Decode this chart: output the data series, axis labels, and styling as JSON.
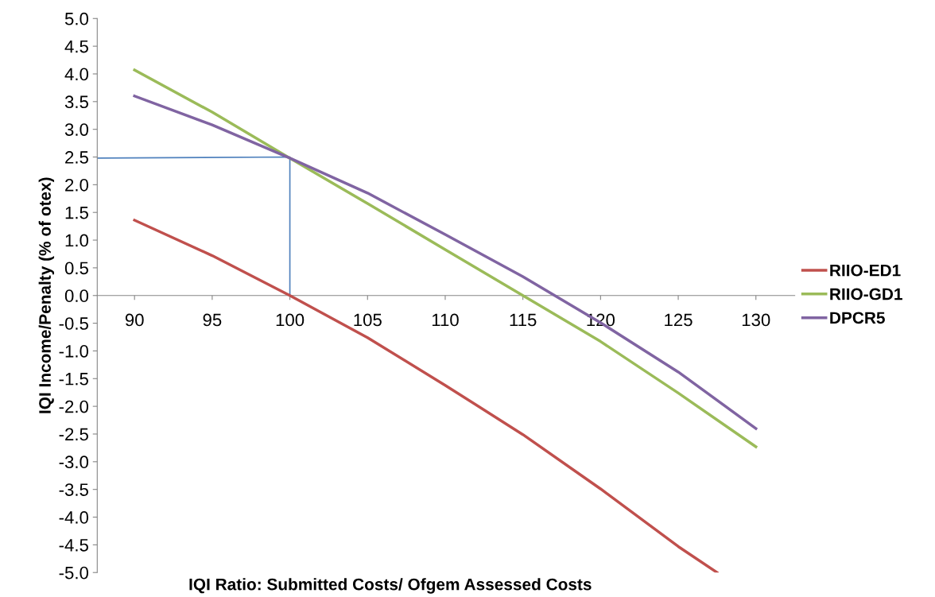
{
  "chart_data": {
    "type": "line",
    "xlabel": "IQI Ratio: Submitted Costs/ Ofgem Assessed Costs",
    "ylabel": "IQI Income/Penalty (% of otex)",
    "xlim": [
      87.6,
      132.5
    ],
    "xticks": [
      90,
      95,
      100,
      105,
      110,
      115,
      120,
      125,
      130
    ],
    "ylim": [
      -5.0,
      5.0
    ],
    "yticks": [
      {
        "value": 5,
        "label": "5.0"
      },
      {
        "value": 4.5,
        "label": "4.5"
      },
      {
        "value": 4,
        "label": "4.0"
      },
      {
        "value": 3.5,
        "label": "3.5"
      },
      {
        "value": 3,
        "label": "3.0"
      },
      {
        "value": 2.5,
        "label": "2.5"
      },
      {
        "value": 2,
        "label": "2.0"
      },
      {
        "value": 1.5,
        "label": "1.5"
      },
      {
        "value": 1,
        "label": "1.0"
      },
      {
        "value": 0.5,
        "label": "0.5"
      },
      {
        "value": 0,
        "label": "0.0"
      },
      {
        "value": -0.5,
        "label": "-0.5"
      },
      {
        "value": -1,
        "label": "-1.0"
      },
      {
        "value": -1.5,
        "label": "-1.5"
      },
      {
        "value": -2,
        "label": "-2.0"
      },
      {
        "value": -2.5,
        "label": "-2.5"
      },
      {
        "value": -3,
        "label": "-3.0"
      },
      {
        "value": -3.5,
        "label": "-3.5"
      },
      {
        "value": -4,
        "label": "-4.0"
      },
      {
        "value": -4.5,
        "label": "-4.5"
      },
      {
        "value": -5,
        "label": "-5.0"
      }
    ],
    "grid": false,
    "legend": "right",
    "marker": "none",
    "line_style": "solid",
    "series": [
      {
        "name": "RIIO-ED1",
        "color": "#c0504d",
        "x": [
          90,
          95,
          100,
          105,
          110,
          115,
          120,
          125,
          127.5
        ],
        "values": [
          1.36,
          0.72,
          0.0,
          -0.76,
          -1.62,
          -2.51,
          -3.49,
          -4.53,
          -5.0
        ]
      },
      {
        "name": "RIIO-GD1",
        "color": "#9bbb59",
        "x": [
          90,
          95,
          100,
          105,
          110,
          115,
          120,
          125,
          130
        ],
        "values": [
          4.07,
          3.31,
          2.48,
          1.66,
          0.83,
          0.0,
          -0.83,
          -1.76,
          -2.73
        ]
      },
      {
        "name": "DPCR5",
        "color": "#8064a2",
        "x": [
          90,
          95,
          100,
          105,
          110,
          115,
          120,
          125,
          130
        ],
        "values": [
          3.6,
          3.08,
          2.48,
          1.85,
          1.1,
          0.34,
          -0.49,
          -1.38,
          -2.4
        ]
      },
      {
        "color": "#4f81bd",
        "x": [
          87.6,
          100,
          100
        ],
        "values": [
          2.48,
          2.5,
          0.0
        ]
      }
    ]
  }
}
